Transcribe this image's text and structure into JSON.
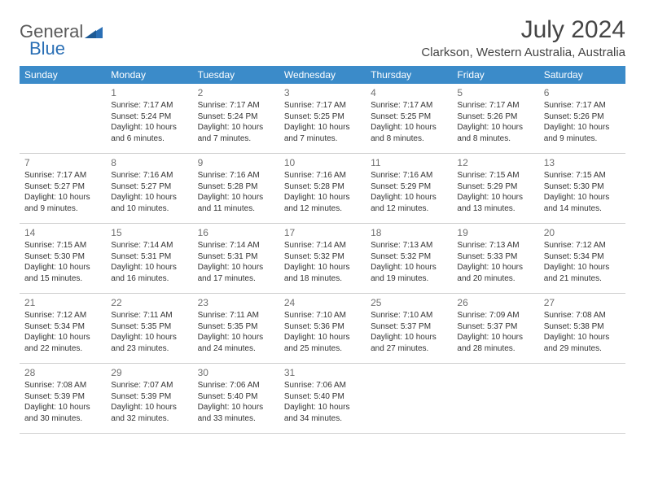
{
  "logo": {
    "text1": "General",
    "text2": "Blue"
  },
  "title": "July 2024",
  "location": "Clarkson, Western Australia, Australia",
  "colors": {
    "header_bg": "#3b8bc9",
    "header_text": "#ffffff",
    "row_border": "#3b6fa5",
    "daynum": "#707070",
    "body_text": "#333333",
    "logo_gray": "#5a5a5a",
    "logo_blue": "#2a6fb5"
  },
  "weekdays": [
    "Sunday",
    "Monday",
    "Tuesday",
    "Wednesday",
    "Thursday",
    "Friday",
    "Saturday"
  ],
  "weeks": [
    [
      null,
      {
        "d": "1",
        "sr": "Sunrise: 7:17 AM",
        "ss": "Sunset: 5:24 PM",
        "dl1": "Daylight: 10 hours",
        "dl2": "and 6 minutes."
      },
      {
        "d": "2",
        "sr": "Sunrise: 7:17 AM",
        "ss": "Sunset: 5:24 PM",
        "dl1": "Daylight: 10 hours",
        "dl2": "and 7 minutes."
      },
      {
        "d": "3",
        "sr": "Sunrise: 7:17 AM",
        "ss": "Sunset: 5:25 PM",
        "dl1": "Daylight: 10 hours",
        "dl2": "and 7 minutes."
      },
      {
        "d": "4",
        "sr": "Sunrise: 7:17 AM",
        "ss": "Sunset: 5:25 PM",
        "dl1": "Daylight: 10 hours",
        "dl2": "and 8 minutes."
      },
      {
        "d": "5",
        "sr": "Sunrise: 7:17 AM",
        "ss": "Sunset: 5:26 PM",
        "dl1": "Daylight: 10 hours",
        "dl2": "and 8 minutes."
      },
      {
        "d": "6",
        "sr": "Sunrise: 7:17 AM",
        "ss": "Sunset: 5:26 PM",
        "dl1": "Daylight: 10 hours",
        "dl2": "and 9 minutes."
      }
    ],
    [
      {
        "d": "7",
        "sr": "Sunrise: 7:17 AM",
        "ss": "Sunset: 5:27 PM",
        "dl1": "Daylight: 10 hours",
        "dl2": "and 9 minutes."
      },
      {
        "d": "8",
        "sr": "Sunrise: 7:16 AM",
        "ss": "Sunset: 5:27 PM",
        "dl1": "Daylight: 10 hours",
        "dl2": "and 10 minutes."
      },
      {
        "d": "9",
        "sr": "Sunrise: 7:16 AM",
        "ss": "Sunset: 5:28 PM",
        "dl1": "Daylight: 10 hours",
        "dl2": "and 11 minutes."
      },
      {
        "d": "10",
        "sr": "Sunrise: 7:16 AM",
        "ss": "Sunset: 5:28 PM",
        "dl1": "Daylight: 10 hours",
        "dl2": "and 12 minutes."
      },
      {
        "d": "11",
        "sr": "Sunrise: 7:16 AM",
        "ss": "Sunset: 5:29 PM",
        "dl1": "Daylight: 10 hours",
        "dl2": "and 12 minutes."
      },
      {
        "d": "12",
        "sr": "Sunrise: 7:15 AM",
        "ss": "Sunset: 5:29 PM",
        "dl1": "Daylight: 10 hours",
        "dl2": "and 13 minutes."
      },
      {
        "d": "13",
        "sr": "Sunrise: 7:15 AM",
        "ss": "Sunset: 5:30 PM",
        "dl1": "Daylight: 10 hours",
        "dl2": "and 14 minutes."
      }
    ],
    [
      {
        "d": "14",
        "sr": "Sunrise: 7:15 AM",
        "ss": "Sunset: 5:30 PM",
        "dl1": "Daylight: 10 hours",
        "dl2": "and 15 minutes."
      },
      {
        "d": "15",
        "sr": "Sunrise: 7:14 AM",
        "ss": "Sunset: 5:31 PM",
        "dl1": "Daylight: 10 hours",
        "dl2": "and 16 minutes."
      },
      {
        "d": "16",
        "sr": "Sunrise: 7:14 AM",
        "ss": "Sunset: 5:31 PM",
        "dl1": "Daylight: 10 hours",
        "dl2": "and 17 minutes."
      },
      {
        "d": "17",
        "sr": "Sunrise: 7:14 AM",
        "ss": "Sunset: 5:32 PM",
        "dl1": "Daylight: 10 hours",
        "dl2": "and 18 minutes."
      },
      {
        "d": "18",
        "sr": "Sunrise: 7:13 AM",
        "ss": "Sunset: 5:32 PM",
        "dl1": "Daylight: 10 hours",
        "dl2": "and 19 minutes."
      },
      {
        "d": "19",
        "sr": "Sunrise: 7:13 AM",
        "ss": "Sunset: 5:33 PM",
        "dl1": "Daylight: 10 hours",
        "dl2": "and 20 minutes."
      },
      {
        "d": "20",
        "sr": "Sunrise: 7:12 AM",
        "ss": "Sunset: 5:34 PM",
        "dl1": "Daylight: 10 hours",
        "dl2": "and 21 minutes."
      }
    ],
    [
      {
        "d": "21",
        "sr": "Sunrise: 7:12 AM",
        "ss": "Sunset: 5:34 PM",
        "dl1": "Daylight: 10 hours",
        "dl2": "and 22 minutes."
      },
      {
        "d": "22",
        "sr": "Sunrise: 7:11 AM",
        "ss": "Sunset: 5:35 PM",
        "dl1": "Daylight: 10 hours",
        "dl2": "and 23 minutes."
      },
      {
        "d": "23",
        "sr": "Sunrise: 7:11 AM",
        "ss": "Sunset: 5:35 PM",
        "dl1": "Daylight: 10 hours",
        "dl2": "and 24 minutes."
      },
      {
        "d": "24",
        "sr": "Sunrise: 7:10 AM",
        "ss": "Sunset: 5:36 PM",
        "dl1": "Daylight: 10 hours",
        "dl2": "and 25 minutes."
      },
      {
        "d": "25",
        "sr": "Sunrise: 7:10 AM",
        "ss": "Sunset: 5:37 PM",
        "dl1": "Daylight: 10 hours",
        "dl2": "and 27 minutes."
      },
      {
        "d": "26",
        "sr": "Sunrise: 7:09 AM",
        "ss": "Sunset: 5:37 PM",
        "dl1": "Daylight: 10 hours",
        "dl2": "and 28 minutes."
      },
      {
        "d": "27",
        "sr": "Sunrise: 7:08 AM",
        "ss": "Sunset: 5:38 PM",
        "dl1": "Daylight: 10 hours",
        "dl2": "and 29 minutes."
      }
    ],
    [
      {
        "d": "28",
        "sr": "Sunrise: 7:08 AM",
        "ss": "Sunset: 5:39 PM",
        "dl1": "Daylight: 10 hours",
        "dl2": "and 30 minutes."
      },
      {
        "d": "29",
        "sr": "Sunrise: 7:07 AM",
        "ss": "Sunset: 5:39 PM",
        "dl1": "Daylight: 10 hours",
        "dl2": "and 32 minutes."
      },
      {
        "d": "30",
        "sr": "Sunrise: 7:06 AM",
        "ss": "Sunset: 5:40 PM",
        "dl1": "Daylight: 10 hours",
        "dl2": "and 33 minutes."
      },
      {
        "d": "31",
        "sr": "Sunrise: 7:06 AM",
        "ss": "Sunset: 5:40 PM",
        "dl1": "Daylight: 10 hours",
        "dl2": "and 34 minutes."
      },
      null,
      null,
      null
    ]
  ]
}
